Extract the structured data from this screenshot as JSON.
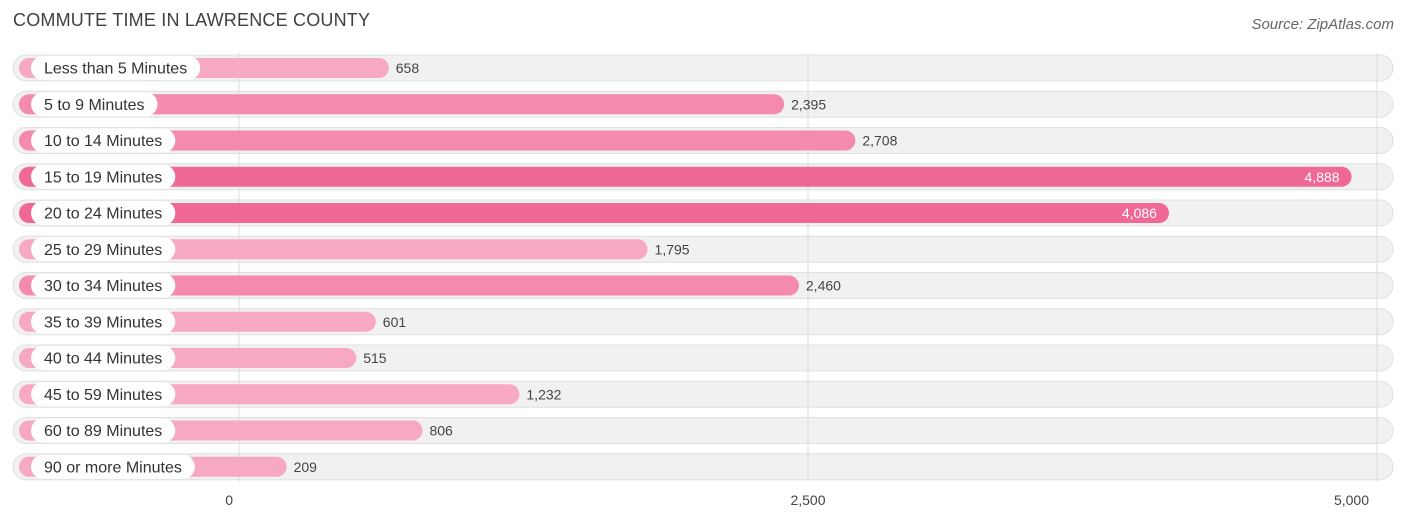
{
  "header": {
    "title": "COMMUTE TIME IN LAWRENCE COUNTY",
    "source": "Source: ZipAtlas.com"
  },
  "colors": {
    "bar_light": "#f7a8c2",
    "bar_mid": "#f48aae",
    "bar_strong": "#f06896"
  },
  "chart_data": {
    "type": "bar",
    "orientation": "horizontal",
    "title": "COMMUTE TIME IN LAWRENCE COUNTY",
    "categories": [
      "Less than 5 Minutes",
      "5 to 9 Minutes",
      "10 to 14 Minutes",
      "15 to 19 Minutes",
      "20 to 24 Minutes",
      "25 to 29 Minutes",
      "30 to 34 Minutes",
      "35 to 39 Minutes",
      "40 to 44 Minutes",
      "45 to 59 Minutes",
      "60 to 89 Minutes",
      "90 or more Minutes"
    ],
    "values": [
      658,
      2395,
      2708,
      4888,
      4086,
      1795,
      2460,
      601,
      515,
      1232,
      806,
      209
    ],
    "value_labels": [
      "658",
      "2,395",
      "2,708",
      "4,888",
      "4,086",
      "1,795",
      "2,460",
      "601",
      "515",
      "1,232",
      "806",
      "209"
    ],
    "xlim": [
      0,
      5000
    ],
    "ticks": [
      0,
      2500,
      5000
    ],
    "tick_labels": [
      "0",
      "2,500",
      "5,000"
    ],
    "grid": true,
    "legend": "none"
  }
}
